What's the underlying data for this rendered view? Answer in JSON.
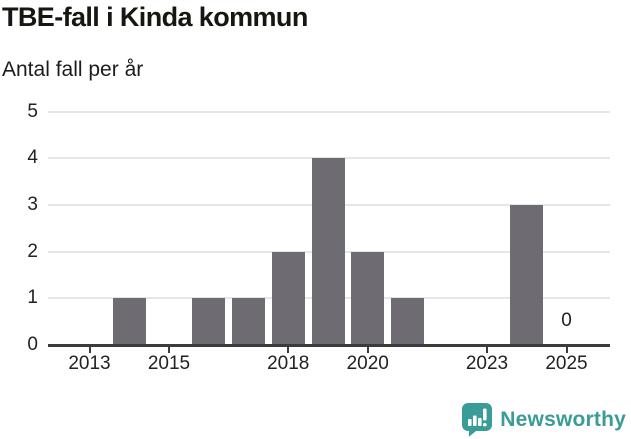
{
  "header": {
    "title": "TBE-fall i Kinda kommun",
    "subtitle": "Antal fall per år"
  },
  "chart_data": {
    "type": "bar",
    "title": "TBE-fall i Kinda kommun",
    "subtitle": "Antal fall per år",
    "ylabel": "Antal fall per år",
    "xlabel": "",
    "categories": [
      2013,
      2014,
      2015,
      2016,
      2017,
      2018,
      2019,
      2020,
      2021,
      2022,
      2023,
      2024,
      2025
    ],
    "values": [
      0,
      1,
      0,
      1,
      1,
      2,
      4,
      2,
      1,
      0,
      0,
      3,
      0
    ],
    "xticks": [
      2013,
      2015,
      2018,
      2020,
      2023,
      2025
    ],
    "yticks": [
      0,
      1,
      2,
      3,
      4,
      5
    ],
    "ylim": [
      0,
      5
    ],
    "grid": true,
    "legend": "none",
    "bar_color": "#6e6c72",
    "gridline_color": "#e6e6e6",
    "axis_color": "#3b3b3b",
    "annotations": [
      {
        "category": 2025,
        "text": "0"
      }
    ]
  },
  "footer": {
    "brand": "Newsworthy",
    "brand_color": "#3a9c96",
    "icon": "newsworthy-speech-bubble-bar-chart-icon"
  }
}
